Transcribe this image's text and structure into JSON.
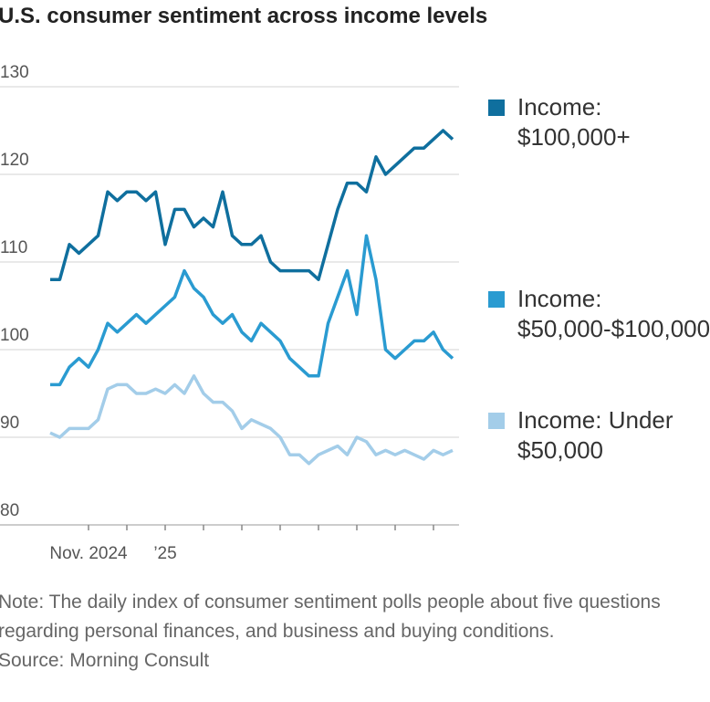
{
  "chart_data": {
    "type": "line",
    "title": "U.S. consumer sentiment across income levels",
    "note": "Note: The daily index of consumer sentiment polls people about five questions regarding personal finances, and business and buying conditions.",
    "source": "Source: Morning Consult",
    "categories": [
      null,
      null,
      null,
      null,
      "Nov. 2024",
      null,
      null,
      null,
      null,
      null,
      null,
      null,
      "’25",
      null,
      null,
      null,
      null,
      null,
      null,
      null,
      null,
      null,
      null,
      null,
      null,
      null,
      null,
      null,
      null,
      null,
      null,
      null,
      null,
      null,
      null,
      null,
      null,
      null,
      null,
      null,
      null,
      null,
      null
    ],
    "series": [
      {
        "name": "Income: $100,000+",
        "color": "#0f6f9e",
        "values": [
          108,
          108,
          112,
          111,
          112,
          113,
          118,
          117,
          118,
          118,
          117,
          118,
          112,
          116,
          116,
          114,
          115,
          114,
          118,
          113,
          112,
          112,
          113,
          110,
          109,
          109,
          109,
          109,
          108,
          112,
          116,
          119,
          119,
          118,
          122,
          120,
          121,
          122,
          123,
          123,
          124,
          125,
          124
        ]
      },
      {
        "name": "Income: $50,000-$100,000",
        "color": "#2a9bd1",
        "values": [
          96,
          96,
          98,
          99,
          98,
          100,
          103,
          102,
          103,
          104,
          103,
          104,
          105,
          106,
          109,
          107,
          106,
          104,
          103,
          104,
          102,
          101,
          103,
          102,
          101,
          99,
          98,
          97,
          97,
          103,
          106,
          109,
          104,
          113,
          108,
          100,
          99,
          100,
          101,
          101,
          102,
          100,
          99
        ]
      },
      {
        "name": "Income: Under $50,000",
        "color": "#a3cde9",
        "values": [
          90.5,
          90,
          91,
          91,
          91,
          92,
          95.5,
          96,
          96,
          95,
          95,
          95.5,
          95,
          96,
          95,
          97,
          95,
          94,
          94,
          93,
          91,
          92,
          91.5,
          91,
          90,
          88,
          88,
          87,
          88,
          88.5,
          89,
          88,
          90,
          89.5,
          88,
          88.5,
          88,
          88.5,
          88,
          87.5,
          88.5,
          88,
          88.5
        ]
      }
    ],
    "ylim": [
      80,
      130
    ],
    "yticks": [
      80,
      90,
      100,
      110,
      120,
      130
    ],
    "grid": true
  }
}
